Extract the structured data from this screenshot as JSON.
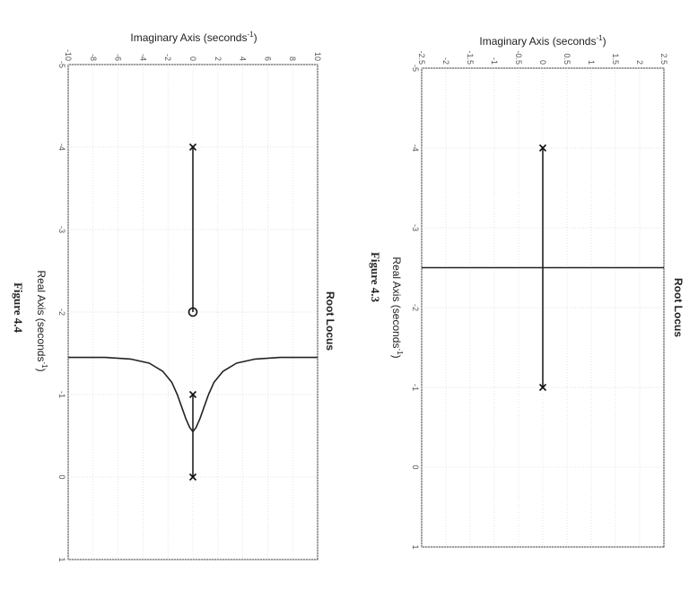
{
  "page_orientation": "rotated 90 degrees clockwise",
  "chart_data": [
    {
      "id": "fig43",
      "type": "line",
      "subtype": "root-locus",
      "title": "Root Locus",
      "caption": "Figure 4.3",
      "xlabel": "Real Axis (seconds",
      "xlabel_sup": "-1",
      "xlabel_close": ")",
      "ylabel": "Imaginary Axis (seconds",
      "ylabel_sup": "-1",
      "ylabel_close": ")",
      "xlim": [
        -5,
        1
      ],
      "ylim": [
        -2.5,
        2.5
      ],
      "xticks": [
        -5,
        -4,
        -3,
        -2,
        -1,
        0,
        1
      ],
      "yticks": [
        -2.5,
        -2,
        -1.5,
        -1,
        -0.5,
        0,
        0.5,
        1,
        1.5,
        2,
        2.5
      ],
      "grid": true,
      "poles": [
        [
          -4,
          0
        ],
        [
          -1,
          0
        ]
      ],
      "zeros": [],
      "branches": [
        {
          "points": [
            [
              -4,
              0
            ],
            [
              -1,
              0
            ]
          ]
        },
        {
          "points": [
            [
              -2.5,
              -2.5
            ],
            [
              -2.5,
              2.5
            ]
          ]
        }
      ]
    },
    {
      "id": "fig44",
      "type": "line",
      "subtype": "root-locus",
      "title": "Root Locus",
      "caption": "Figure 4.4",
      "xlabel": "Real Axis (seconds",
      "xlabel_sup": "-1",
      "xlabel_close": ")",
      "ylabel": "Imaginary Axis (seconds",
      "ylabel_sup": "-1",
      "ylabel_close": ")",
      "xlim": [
        -5,
        1
      ],
      "ylim": [
        -10,
        10
      ],
      "xticks": [
        -5,
        -4,
        -3,
        -2,
        -1,
        0,
        1
      ],
      "yticks": [
        -10,
        -8,
        -6,
        -4,
        -2,
        0,
        2,
        4,
        6,
        8,
        10
      ],
      "grid": true,
      "poles": [
        [
          -4,
          0
        ],
        [
          -1,
          0
        ],
        [
          0,
          0
        ]
      ],
      "zeros": [
        [
          -2,
          0
        ]
      ],
      "branches": [
        {
          "points": [
            [
              -4,
              0
            ],
            [
              -2,
              0
            ]
          ]
        },
        {
          "points": [
            [
              -1,
              0
            ],
            [
              -0.55,
              0
            ]
          ]
        },
        {
          "points": [
            [
              0,
              0
            ],
            [
              -0.55,
              0
            ]
          ]
        },
        {
          "points": [
            [
              -1.45,
              10
            ],
            [
              -1.45,
              7
            ],
            [
              -1.43,
              5
            ],
            [
              -1.38,
              3.5
            ],
            [
              -1.28,
              2.4
            ],
            [
              -1.15,
              1.7
            ],
            [
              -1.0,
              1.25
            ],
            [
              -0.85,
              0.9
            ],
            [
              -0.7,
              0.55
            ],
            [
              -0.6,
              0.25
            ],
            [
              -0.55,
              0
            ]
          ]
        },
        {
          "points": [
            [
              -1.45,
              -10
            ],
            [
              -1.45,
              -7
            ],
            [
              -1.43,
              -5
            ],
            [
              -1.38,
              -3.5
            ],
            [
              -1.28,
              -2.4
            ],
            [
              -1.15,
              -1.7
            ],
            [
              -1.0,
              -1.25
            ],
            [
              -0.85,
              -0.9
            ],
            [
              -0.7,
              -0.55
            ],
            [
              -0.6,
              -0.25
            ],
            [
              -0.55,
              0
            ]
          ]
        }
      ]
    }
  ]
}
